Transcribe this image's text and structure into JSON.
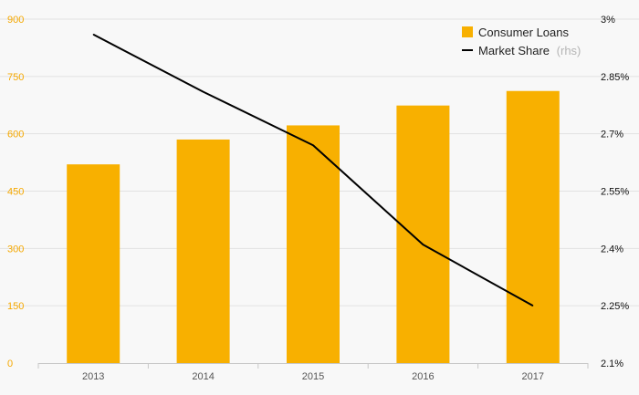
{
  "chart_data": {
    "type": "bar",
    "categories": [
      "2013",
      "2014",
      "2015",
      "2016",
      "2017"
    ],
    "series": [
      {
        "name": "Consumer Loans",
        "type": "bar",
        "axis": "left",
        "values": [
          520,
          585,
          622,
          674,
          712
        ]
      },
      {
        "name": "Market Share",
        "type": "line",
        "axis": "right",
        "values": [
          2.96,
          2.81,
          2.67,
          2.41,
          2.25
        ]
      }
    ],
    "y_left": {
      "ticks": [
        "0",
        "150",
        "300",
        "450",
        "600",
        "750",
        "900"
      ],
      "lim": [
        0,
        900
      ]
    },
    "y_right": {
      "ticks": [
        "2.1%",
        "2.25%",
        "2.4%",
        "2.55%",
        "2.7%",
        "2.85%",
        "3%"
      ],
      "lim": [
        2.1,
        3.0
      ]
    },
    "legend": {
      "position": "top-right",
      "bar_label": "Consumer Loans",
      "line_label": "Market Share",
      "line_suffix": "(rhs)"
    },
    "grid": true
  },
  "colors": {
    "bar": "#f8b000",
    "line": "#000000",
    "grid": "#e2e2e2",
    "left_ticks": "#f5a800"
  }
}
